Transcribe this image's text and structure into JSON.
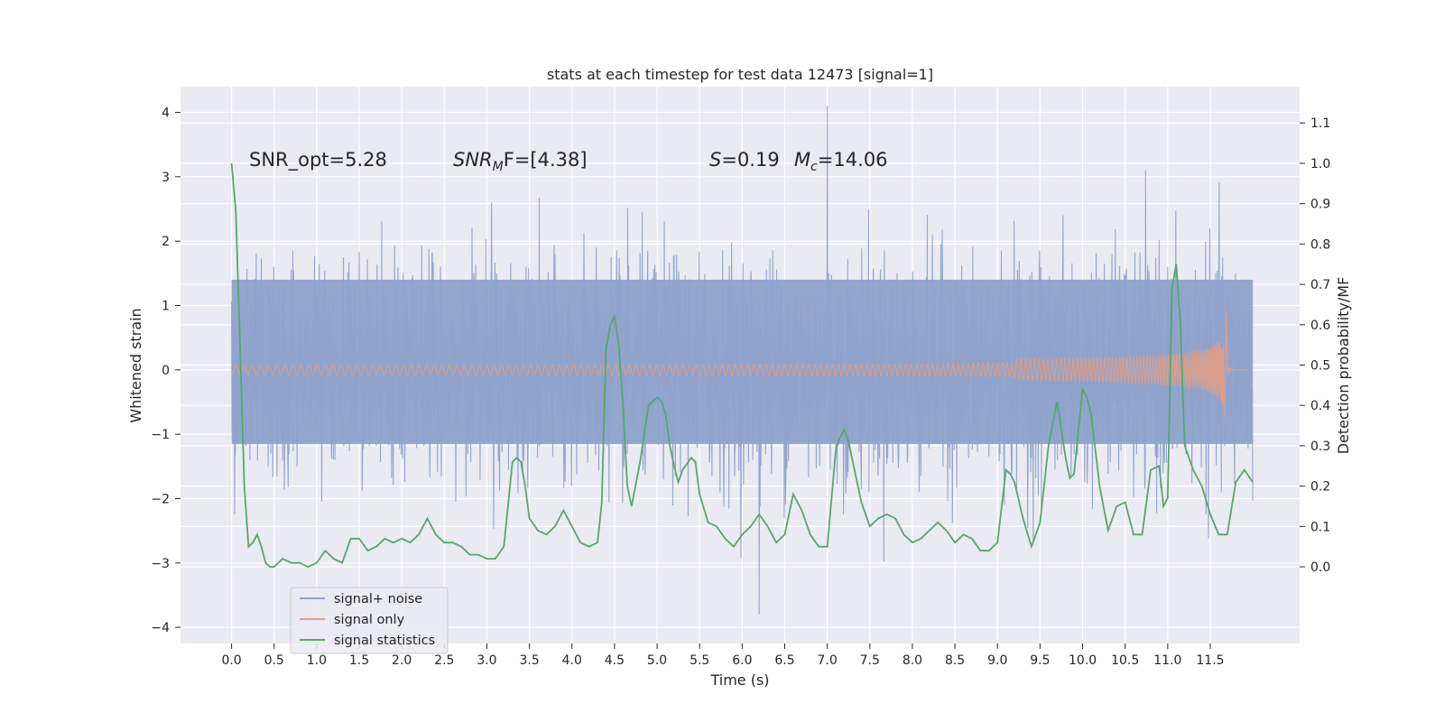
{
  "chart_data": {
    "type": "line",
    "title": "stats at each timestep for test data 12473 [signal=1]",
    "xlabel": "Time (s)",
    "ylabel": "Whitened strain",
    "y2label": "Detection probability/MF",
    "xlim": [
      -0.6,
      12.55
    ],
    "ylim": [
      -4.25,
      4.4
    ],
    "y2lim": [
      -0.19,
      1.19
    ],
    "x_ticks": [
      0.0,
      0.5,
      1.0,
      1.5,
      2.0,
      2.5,
      3.0,
      3.5,
      4.0,
      4.5,
      5.0,
      5.5,
      6.0,
      6.5,
      7.0,
      7.5,
      8.0,
      8.5,
      9.0,
      9.5,
      10.0,
      10.5,
      11.0,
      11.5
    ],
    "x_tick_labels": [
      "0.0",
      "0.5",
      "1.0",
      "1.5",
      "2.0",
      "2.5",
      "3.0",
      "3.5",
      "4.0",
      "4.5",
      "5.0",
      "5.5",
      "6.0",
      "6.5",
      "7.0",
      "7.5",
      "8.0",
      "8.5",
      "9.0",
      "9.5",
      "10.0",
      "10.5",
      "11.0",
      "11.5"
    ],
    "y_ticks": [
      -4,
      -3,
      -2,
      -1,
      0,
      1,
      2,
      3,
      4
    ],
    "y_tick_labels": [
      "−4",
      "−3",
      "−2",
      "−1",
      "0",
      "1",
      "2",
      "3",
      "4"
    ],
    "y2_ticks": [
      0.0,
      0.1,
      0.2,
      0.3,
      0.4,
      0.5,
      0.6,
      0.7,
      0.8,
      0.9,
      1.0,
      1.1
    ],
    "y2_tick_labels": [
      "0.0",
      "0.1",
      "0.2",
      "0.3",
      "0.4",
      "0.5",
      "0.6",
      "0.7",
      "0.8",
      "0.9",
      "1.0",
      "1.1"
    ],
    "grid": true,
    "legend_position": "lower-left",
    "colors": {
      "background": "#eaeaf2",
      "grid": "#ffffff",
      "signal_noise": "#8ea2cb",
      "signal_only": "#dd9e87",
      "statistics": "#55a868"
    },
    "annotations": [
      {
        "text": "SNR_opt=5.28",
        "x": 0.2,
        "y": 3.2
      },
      {
        "base": "SNR",
        "sub": "M",
        "rest": "F=[4.38]",
        "x": 2.6,
        "y": 3.2
      },
      {
        "base": "S",
        "rest": "=0.19",
        "x": 5.6,
        "y": 3.2
      },
      {
        "base": "M",
        "sub": "c",
        "rest": "=14.06",
        "x": 6.6,
        "y": 3.2
      }
    ],
    "series": [
      {
        "name": "signal+ noise",
        "axis": "left",
        "style": "dense-noise",
        "t_range": [
          0.0,
          12.0
        ],
        "core_band": [
          -1.15,
          1.4
        ],
        "typical_envelope": [
          -2.5,
          2.6
        ],
        "max_peak": {
          "x": 7.0,
          "y": 4.1
        },
        "min_peak": {
          "x": 6.2,
          "y": -3.8
        }
      },
      {
        "name": "signal only",
        "axis": "left",
        "style": "chirp",
        "t_range": [
          0.0,
          11.95
        ],
        "merger_time": 11.7,
        "peak_amplitude": 1.1,
        "min_amplitude": -0.78
      },
      {
        "name": "signal statistics",
        "axis": "right",
        "x": [
          0.0,
          0.05,
          0.1,
          0.15,
          0.2,
          0.25,
          0.3,
          0.35,
          0.4,
          0.45,
          0.5,
          0.55,
          0.6,
          0.7,
          0.8,
          0.9,
          1.0,
          1.1,
          1.2,
          1.3,
          1.4,
          1.5,
          1.6,
          1.7,
          1.8,
          1.9,
          2.0,
          2.1,
          2.2,
          2.3,
          2.4,
          2.5,
          2.6,
          2.7,
          2.8,
          2.9,
          3.0,
          3.1,
          3.2,
          3.3,
          3.35,
          3.4,
          3.45,
          3.5,
          3.6,
          3.7,
          3.8,
          3.9,
          4.0,
          4.1,
          4.2,
          4.3,
          4.35,
          4.4,
          4.45,
          4.5,
          4.55,
          4.6,
          4.65,
          4.7,
          4.8,
          4.9,
          4.95,
          5.0,
          5.05,
          5.1,
          5.15,
          5.2,
          5.25,
          5.3,
          5.4,
          5.45,
          5.5,
          5.6,
          5.7,
          5.8,
          5.9,
          6.0,
          6.1,
          6.2,
          6.3,
          6.4,
          6.5,
          6.6,
          6.7,
          6.8,
          6.9,
          7.0,
          7.1,
          7.15,
          7.2,
          7.25,
          7.3,
          7.4,
          7.5,
          7.6,
          7.7,
          7.8,
          7.9,
          8.0,
          8.1,
          8.2,
          8.3,
          8.4,
          8.5,
          8.6,
          8.7,
          8.8,
          8.9,
          9.0,
          9.1,
          9.15,
          9.2,
          9.3,
          9.4,
          9.5,
          9.6,
          9.7,
          9.8,
          9.85,
          9.9,
          10.0,
          10.05,
          10.1,
          10.2,
          10.3,
          10.4,
          10.5,
          10.6,
          10.7,
          10.8,
          10.9,
          10.95,
          11.0,
          11.05,
          11.1,
          11.15,
          11.2,
          11.3,
          11.4,
          11.5,
          11.6,
          11.7,
          11.8,
          11.9,
          12.0
        ],
        "y": [
          1.0,
          0.88,
          0.55,
          0.2,
          0.05,
          0.06,
          0.08,
          0.05,
          0.01,
          0.0,
          0.0,
          0.01,
          0.02,
          0.01,
          0.01,
          0.0,
          0.01,
          0.04,
          0.02,
          0.01,
          0.07,
          0.07,
          0.04,
          0.05,
          0.07,
          0.06,
          0.07,
          0.06,
          0.08,
          0.12,
          0.08,
          0.06,
          0.06,
          0.05,
          0.03,
          0.03,
          0.02,
          0.02,
          0.05,
          0.26,
          0.27,
          0.26,
          0.2,
          0.12,
          0.09,
          0.08,
          0.1,
          0.14,
          0.1,
          0.06,
          0.05,
          0.06,
          0.16,
          0.54,
          0.6,
          0.62,
          0.55,
          0.4,
          0.2,
          0.15,
          0.26,
          0.4,
          0.41,
          0.42,
          0.41,
          0.38,
          0.3,
          0.25,
          0.21,
          0.24,
          0.27,
          0.26,
          0.18,
          0.11,
          0.1,
          0.07,
          0.05,
          0.08,
          0.1,
          0.13,
          0.1,
          0.06,
          0.08,
          0.18,
          0.14,
          0.08,
          0.05,
          0.05,
          0.29,
          0.32,
          0.34,
          0.31,
          0.26,
          0.16,
          0.1,
          0.12,
          0.13,
          0.12,
          0.08,
          0.06,
          0.07,
          0.09,
          0.11,
          0.09,
          0.06,
          0.08,
          0.07,
          0.04,
          0.04,
          0.06,
          0.24,
          0.23,
          0.21,
          0.12,
          0.05,
          0.11,
          0.3,
          0.41,
          0.27,
          0.22,
          0.23,
          0.44,
          0.42,
          0.38,
          0.2,
          0.09,
          0.15,
          0.16,
          0.08,
          0.08,
          0.24,
          0.25,
          0.15,
          0.17,
          0.69,
          0.75,
          0.6,
          0.3,
          0.24,
          0.2,
          0.13,
          0.08,
          0.08,
          0.21,
          0.24,
          0.21
        ]
      }
    ]
  }
}
